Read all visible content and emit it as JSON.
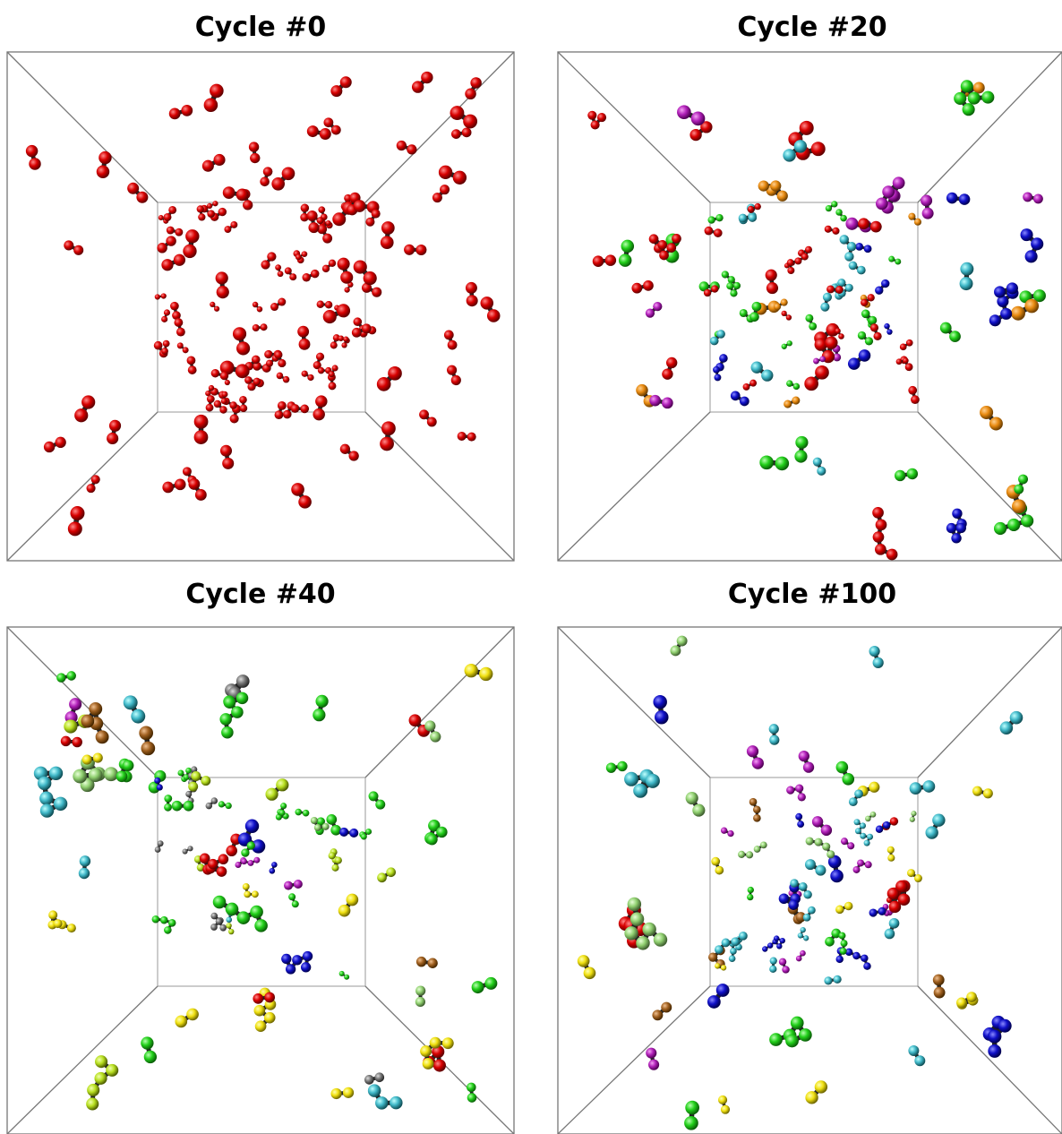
{
  "panels": [
    {
      "title": "Cycle #0"
    },
    {
      "title": "Cycle #20"
    },
    {
      "title": "Cycle #40"
    },
    {
      "title": "Cycle #100"
    }
  ]
}
